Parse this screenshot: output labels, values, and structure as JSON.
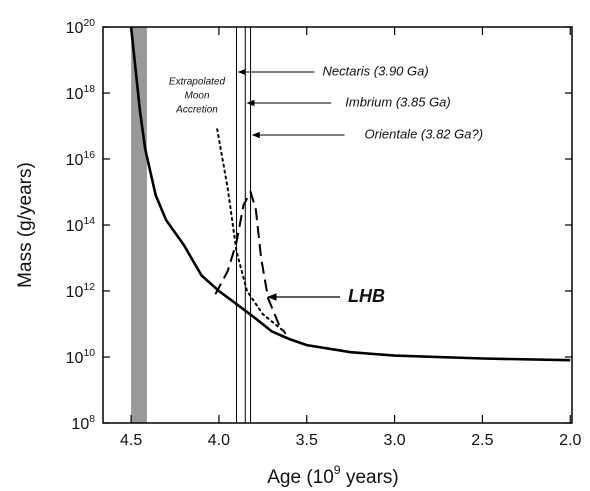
{
  "chart_data": {
    "type": "line",
    "xlabel": "Age (10^9 years)",
    "ylabel": "Mass (g/years)",
    "xlim": [
      4.66,
      1.99
    ],
    "ylim": [
      100000000.0,
      1e+20
    ],
    "ylog": true,
    "xticks": [
      {
        "value": 4.5,
        "label": "4.5"
      },
      {
        "value": 4.0,
        "label": "4.0"
      },
      {
        "value": 3.5,
        "label": "3.5"
      },
      {
        "value": 3.0,
        "label": "3.0"
      },
      {
        "value": 2.5,
        "label": "2.5"
      },
      {
        "value": 2.0,
        "label": "2.0"
      }
    ],
    "yticks": [
      {
        "value": 100000000.0,
        "label": "10^8"
      },
      {
        "value": 10000000000.0,
        "label": "10^10"
      },
      {
        "value": 1000000000000.0,
        "label": "10^12"
      },
      {
        "value": 100000000000000.0,
        "label": "10^14"
      },
      {
        "value": 1e+16,
        "label": "10^16"
      },
      {
        "value": 1e+18,
        "label": "10^18"
      },
      {
        "value": 1e+20,
        "label": "10^20"
      }
    ],
    "shaded_region": {
      "x": [
        4.5,
        4.41
      ],
      "color": "#999999"
    },
    "series": [
      {
        "style": "solid",
        "color": "#000000",
        "x": [
          4.5,
          4.45,
          4.42,
          4.36,
          4.3,
          4.2,
          4.1,
          4.0,
          3.9,
          3.8,
          3.7,
          3.6,
          3.5,
          3.25,
          3.0,
          2.5,
          2.0
        ],
        "values": [
          1e+20,
          3e+17,
          2e+16,
          800000000000000.0,
          140000000000000.0,
          25000000000000.0,
          3000000000000.0,
          1000000000000.0,
          400000000000.0,
          160000000000.0,
          60000000000.0,
          35000000000.0,
          23000000000.0,
          14000000000.0,
          11000000000.0,
          9000000000.0,
          8000000000.0
        ]
      },
      {
        "style": "dotted",
        "color": "#000000",
        "x": [
          4.01,
          3.95,
          3.9,
          3.84,
          3.75,
          3.63
        ],
        "values": [
          8e+16,
          1300000000000000.0,
          16000000000000.0,
          1000000000000.0,
          200000000000.0,
          60000000000.0
        ]
      },
      {
        "style": "dashed",
        "color": "#000000",
        "x": [
          4.02,
          3.95,
          3.9,
          3.86,
          3.82,
          3.79,
          3.76,
          3.72,
          3.66,
          3.62
        ],
        "values": [
          800000000000.0,
          4000000000000.0,
          30000000000000.0,
          400000000000000.0,
          1000000000000000.0,
          300000000000000.0,
          10000000000000.0,
          600000000000.0,
          100000000000.0,
          50000000000.0
        ]
      }
    ],
    "events": [
      {
        "x": 3.9,
        "label": "Nectaris (3.90 Ga)"
      },
      {
        "x": 3.85,
        "label": "Imbrium (3.85 Ga)"
      },
      {
        "x": 3.82,
        "label": "Orientale (3.82 Ga?)"
      }
    ],
    "annotations": {
      "extrapolated": [
        "Extrapolated",
        "Moon",
        "Accretion"
      ],
      "lhb": "LHB"
    }
  }
}
